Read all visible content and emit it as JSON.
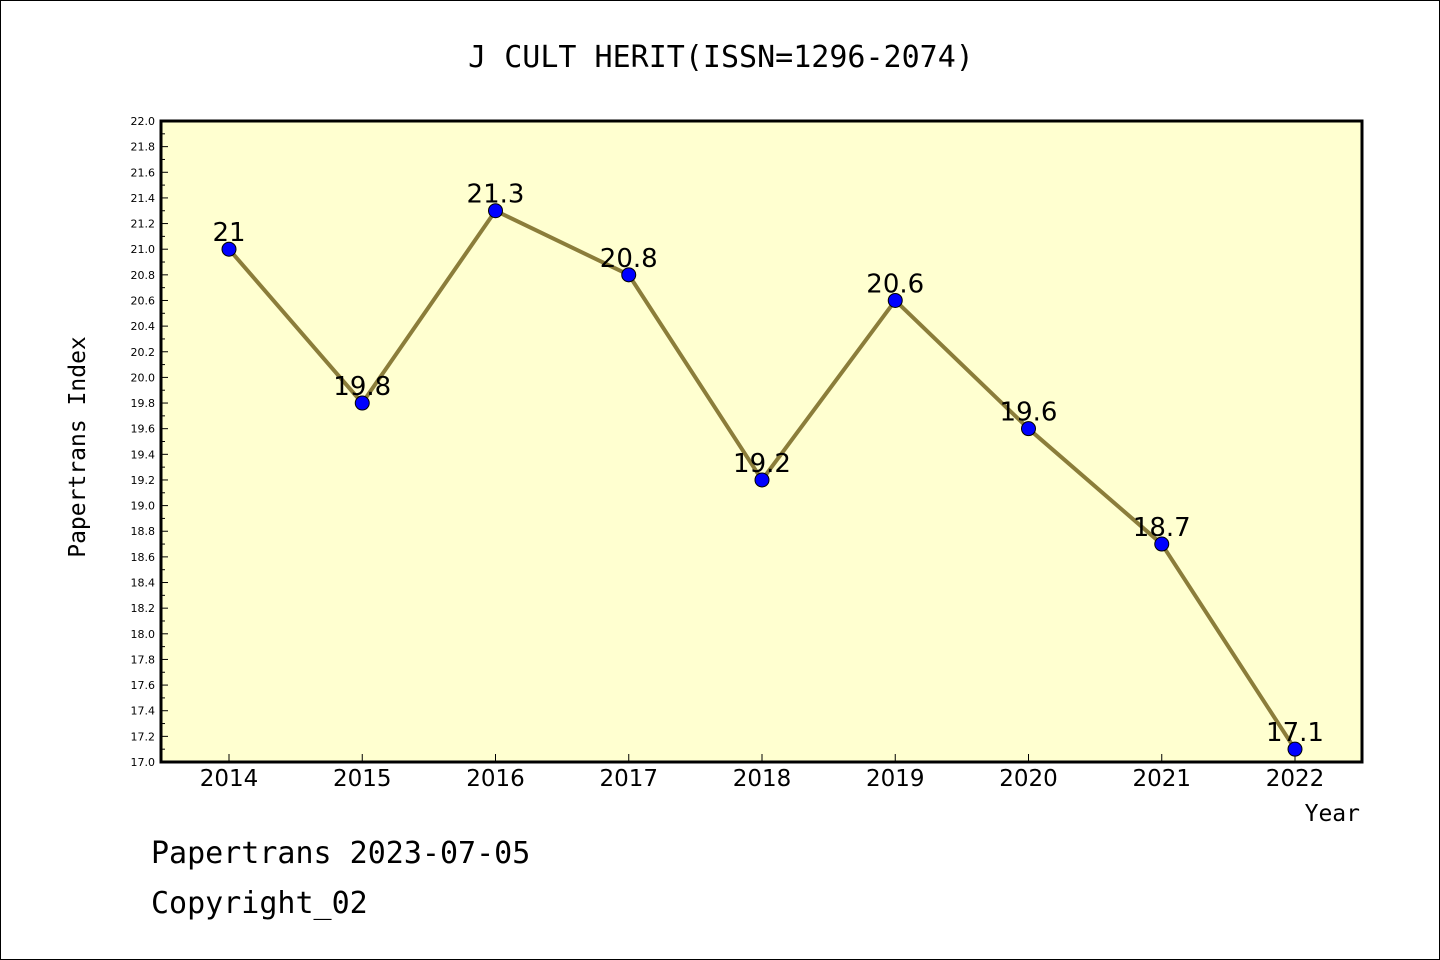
{
  "chart_data": {
    "type": "line",
    "title": "J CULT HERIT(ISSN=1296-2074)",
    "xlabel": "Year",
    "ylabel": "Papertrans Index",
    "ylim": [
      17.0,
      22.0
    ],
    "ytick_step": 0.2,
    "categories": [
      "2014",
      "2015",
      "2016",
      "2017",
      "2018",
      "2019",
      "2020",
      "2021",
      "2022"
    ],
    "series": [
      {
        "values": [
          21,
          19.8,
          21.3,
          20.8,
          19.2,
          20.6,
          19.6,
          18.7,
          17.1
        ],
        "labels": [
          "21",
          "19.8",
          "21.3",
          "20.8",
          "19.2",
          "20.6",
          "19.6",
          "18.7",
          "17.1"
        ],
        "line_color": "#8b7d3a",
        "marker_color": "#0000ff"
      }
    ],
    "plot_background": "#ffffd0",
    "grid": false,
    "legend": "none"
  },
  "footer": {
    "line1": "Papertrans 2023-07-05",
    "line2": "Copyright_02"
  }
}
